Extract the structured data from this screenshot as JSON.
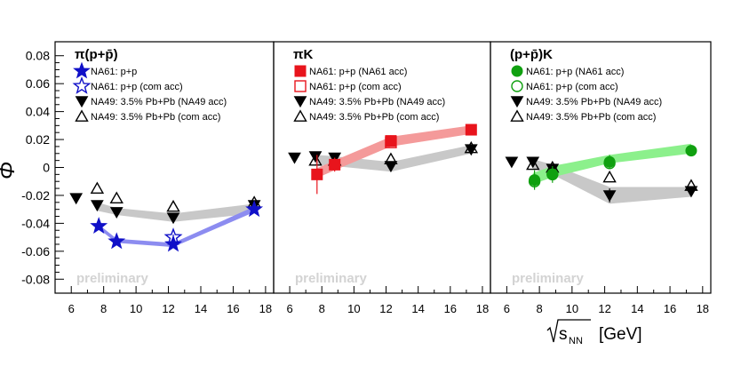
{
  "figure": {
    "y_axis_label": "Φ",
    "x_axis_label_symbol": "√s",
    "x_axis_label_sub": "NN",
    "x_axis_label_unit": "[GeV]",
    "watermark": "preliminary"
  },
  "chart_data": [
    {
      "type": "scatter",
      "title": "π(p+p̄)",
      "xlim": [
        5,
        18.5
      ],
      "ylim": [
        -0.09,
        0.09
      ],
      "x_ticks": [
        6,
        8,
        10,
        12,
        14,
        16,
        18
      ],
      "y_ticks": [
        -0.08,
        -0.06,
        -0.04,
        -0.02,
        0,
        0.02,
        0.04,
        0.06,
        0.08
      ],
      "y_tick_labels": [
        "-0.08",
        "-0.06",
        "-0.04",
        "-0.02",
        "0",
        "0.02",
        "0.04",
        "0.06",
        "0.08"
      ],
      "legend": [
        {
          "label": "NA61: p+p",
          "marker": "filled-star",
          "color": "#1010c8"
        },
        {
          "label": "NA61: p+p (com acc)",
          "marker": "open-star",
          "color": "#1010c8"
        },
        {
          "label": "NA49: 3.5% Pb+Pb (NA49 acc)",
          "marker": "filled-triangle-down",
          "color": "#000000"
        },
        {
          "label": "NA49: 3.5% Pb+Pb (com acc)",
          "marker": "open-triangle-up",
          "color": "#000000"
        }
      ],
      "bands": [
        {
          "name": "NA61 syst",
          "color": "#8c8cf0",
          "x": [
            7.6,
            8.8,
            12.3,
            17.3
          ],
          "lower": [
            -0.043,
            -0.054,
            -0.057,
            -0.032
          ],
          "upper": [
            -0.04,
            -0.051,
            -0.054,
            -0.028
          ]
        },
        {
          "name": "NA49 syst",
          "color": "#c8c8c8",
          "x": [
            7.6,
            8.8,
            12.3,
            17.3
          ],
          "lower": [
            -0.031,
            -0.034,
            -0.039,
            -0.033
          ],
          "upper": [
            -0.025,
            -0.029,
            -0.033,
            -0.026
          ]
        }
      ],
      "series": [
        {
          "name": "NA61: p+p",
          "marker": "filled-star",
          "color": "#1010c8",
          "x": [
            7.7,
            8.8,
            12.3,
            17.3
          ],
          "y": [
            -0.042,
            -0.053,
            -0.055,
            -0.03
          ],
          "err": [
            0.002,
            0.002,
            0.002,
            0.002
          ]
        },
        {
          "name": "NA61: p+p (com acc)",
          "marker": "open-star",
          "color": "#1010c8",
          "x": [
            12.3
          ],
          "y": [
            -0.05
          ],
          "err": [
            0.002
          ]
        },
        {
          "name": "NA49: 3.5% Pb+Pb (NA49 acc)",
          "marker": "filled-triangle-down",
          "color": "#000000",
          "x": [
            6.3,
            7.6,
            8.8,
            12.3,
            17.3
          ],
          "y": [
            -0.022,
            -0.027,
            -0.032,
            -0.036,
            -0.027
          ],
          "err": [
            0.002,
            0.002,
            0.002,
            0.002,
            0.002
          ]
        },
        {
          "name": "NA49: 3.5% Pb+Pb (com acc)",
          "marker": "open-triangle-up",
          "color": "#000000",
          "x": [
            7.6,
            8.8,
            12.3,
            17.3
          ],
          "y": [
            -0.015,
            -0.022,
            -0.028,
            -0.025
          ],
          "err": [
            0,
            0,
            0,
            0
          ]
        }
      ]
    },
    {
      "type": "scatter",
      "title": "πK",
      "xlim": [
        5,
        18.5
      ],
      "ylim": [
        -0.09,
        0.09
      ],
      "x_ticks": [
        6,
        8,
        10,
        12,
        14,
        16,
        18
      ],
      "y_ticks": [],
      "y_tick_labels": [],
      "legend": [
        {
          "label": "NA61: p+p (NA61 acc)",
          "marker": "filled-square",
          "color": "#e8141c"
        },
        {
          "label": "NA61: p+p (com acc)",
          "marker": "open-square",
          "color": "#e8141c"
        },
        {
          "label": "NA49: 3.5% Pb+Pb (NA49 acc)",
          "marker": "filled-triangle-down",
          "color": "#000000"
        },
        {
          "label": "NA49: 3.5% Pb+Pb (com acc)",
          "marker": "open-triangle-up",
          "color": "#000000"
        }
      ],
      "bands": [
        {
          "name": "NA61 syst",
          "color": "#f49a9a",
          "x": [
            7.6,
            8.8,
            12.3,
            17.3
          ],
          "lower": [
            -0.008,
            -0.002,
            0.015,
            0.024
          ],
          "upper": [
            -0.001,
            0.005,
            0.022,
            0.03
          ]
        },
        {
          "name": "NA49 syst",
          "color": "#c8c8c8",
          "x": [
            7.6,
            8.8,
            12.3,
            17.3
          ],
          "lower": [
            0.002,
            0.001,
            -0.003,
            0.01
          ],
          "upper": [
            0.009,
            0.008,
            0.004,
            0.016
          ]
        }
      ],
      "series": [
        {
          "name": "NA61: p+p (NA61 acc)",
          "marker": "filled-square",
          "color": "#e8141c",
          "x": [
            7.7,
            8.8,
            12.3,
            17.3
          ],
          "y": [
            -0.005,
            0.002,
            0.019,
            0.027
          ],
          "err": [
            0.014,
            0.005,
            0.004,
            0.002
          ]
        },
        {
          "name": "NA61: p+p (com acc)",
          "marker": "open-square",
          "color": "#e8141c",
          "x": [
            12.3
          ],
          "y": [
            0.018
          ],
          "err": [
            0.002
          ]
        },
        {
          "name": "NA49: 3.5% Pb+Pb (NA49 acc)",
          "marker": "filled-triangle-down",
          "color": "#000000",
          "x": [
            6.3,
            7.6,
            8.8,
            12.3,
            17.3
          ],
          "y": [
            0.007,
            0.008,
            0.007,
            0.001,
            0.013
          ],
          "err": [
            0.002,
            0.002,
            0.002,
            0.002,
            0.002
          ]
        },
        {
          "name": "NA49: 3.5% Pb+Pb (com acc)",
          "marker": "open-triangle-up",
          "color": "#000000",
          "x": [
            7.6,
            8.8,
            12.3,
            17.3
          ],
          "y": [
            0.005,
            0.005,
            0.006,
            0.014
          ],
          "err": [
            0,
            0,
            0,
            0
          ]
        }
      ]
    },
    {
      "type": "scatter",
      "title": "(p+p̄)K",
      "xlim": [
        5,
        18.5
      ],
      "ylim": [
        -0.09,
        0.09
      ],
      "x_ticks": [
        6,
        8,
        10,
        12,
        14,
        16,
        18
      ],
      "y_ticks": [],
      "y_tick_labels": [],
      "legend": [
        {
          "label": "NA61: p+p (NA61 acc)",
          "marker": "filled-circle",
          "color": "#10a010"
        },
        {
          "label": "NA61: p+p (com acc)",
          "marker": "open-circle",
          "color": "#10a010"
        },
        {
          "label": "NA49: 3.5% Pb+Pb (NA49 acc)",
          "marker": "filled-triangle-down",
          "color": "#000000"
        },
        {
          "label": "NA49: 3.5% Pb+Pb (com acc)",
          "marker": "open-triangle-up",
          "color": "#000000"
        }
      ],
      "bands": [
        {
          "name": "NA61 syst",
          "color": "#8cf08c",
          "x": [
            7.6,
            8.8,
            12.3,
            17.3
          ],
          "lower": [
            -0.012,
            -0.007,
            0.003,
            0.01
          ],
          "upper": [
            -0.004,
            0.001,
            0.009,
            0.017
          ]
        },
        {
          "name": "NA49 syst",
          "color": "#c8c8c8",
          "x": [
            7.6,
            8.8,
            12.3,
            17.3
          ],
          "lower": [
            -0.001,
            -0.005,
            -0.026,
            -0.021
          ],
          "upper": [
            0.006,
            0.002,
            -0.014,
            -0.014
          ]
        }
      ],
      "series": [
        {
          "name": "NA61: p+p (NA61 acc)",
          "marker": "filled-circle",
          "color": "#10a010",
          "x": [
            7.7,
            8.8,
            12.3,
            17.3
          ],
          "y": [
            -0.009,
            -0.005,
            0.004,
            0.012
          ],
          "err": [
            0.007,
            0.006,
            0.005,
            0.004
          ]
        },
        {
          "name": "NA61: p+p (com acc)",
          "marker": "open-circle",
          "color": "#10a010",
          "x": [
            7.7,
            8.8,
            12.3
          ],
          "y": [
            -0.01,
            -0.005,
            0.003
          ],
          "err": [
            0,
            0,
            0
          ]
        },
        {
          "name": "NA49: 3.5% Pb+Pb (NA49 acc)",
          "marker": "filled-triangle-down",
          "color": "#000000",
          "x": [
            6.3,
            7.6,
            8.8,
            12.3,
            17.3
          ],
          "y": [
            0.004,
            0.004,
            -0.001,
            -0.02,
            -0.017
          ],
          "err": [
            0.002,
            0.002,
            0.002,
            0.005,
            0.002
          ]
        },
        {
          "name": "NA49: 3.5% Pb+Pb (com acc)",
          "marker": "open-triangle-up",
          "color": "#000000",
          "x": [
            7.6,
            8.8,
            12.3,
            17.3
          ],
          "y": [
            0.002,
            0.0,
            -0.007,
            -0.013
          ],
          "err": [
            0,
            0,
            0,
            0
          ]
        }
      ]
    }
  ]
}
